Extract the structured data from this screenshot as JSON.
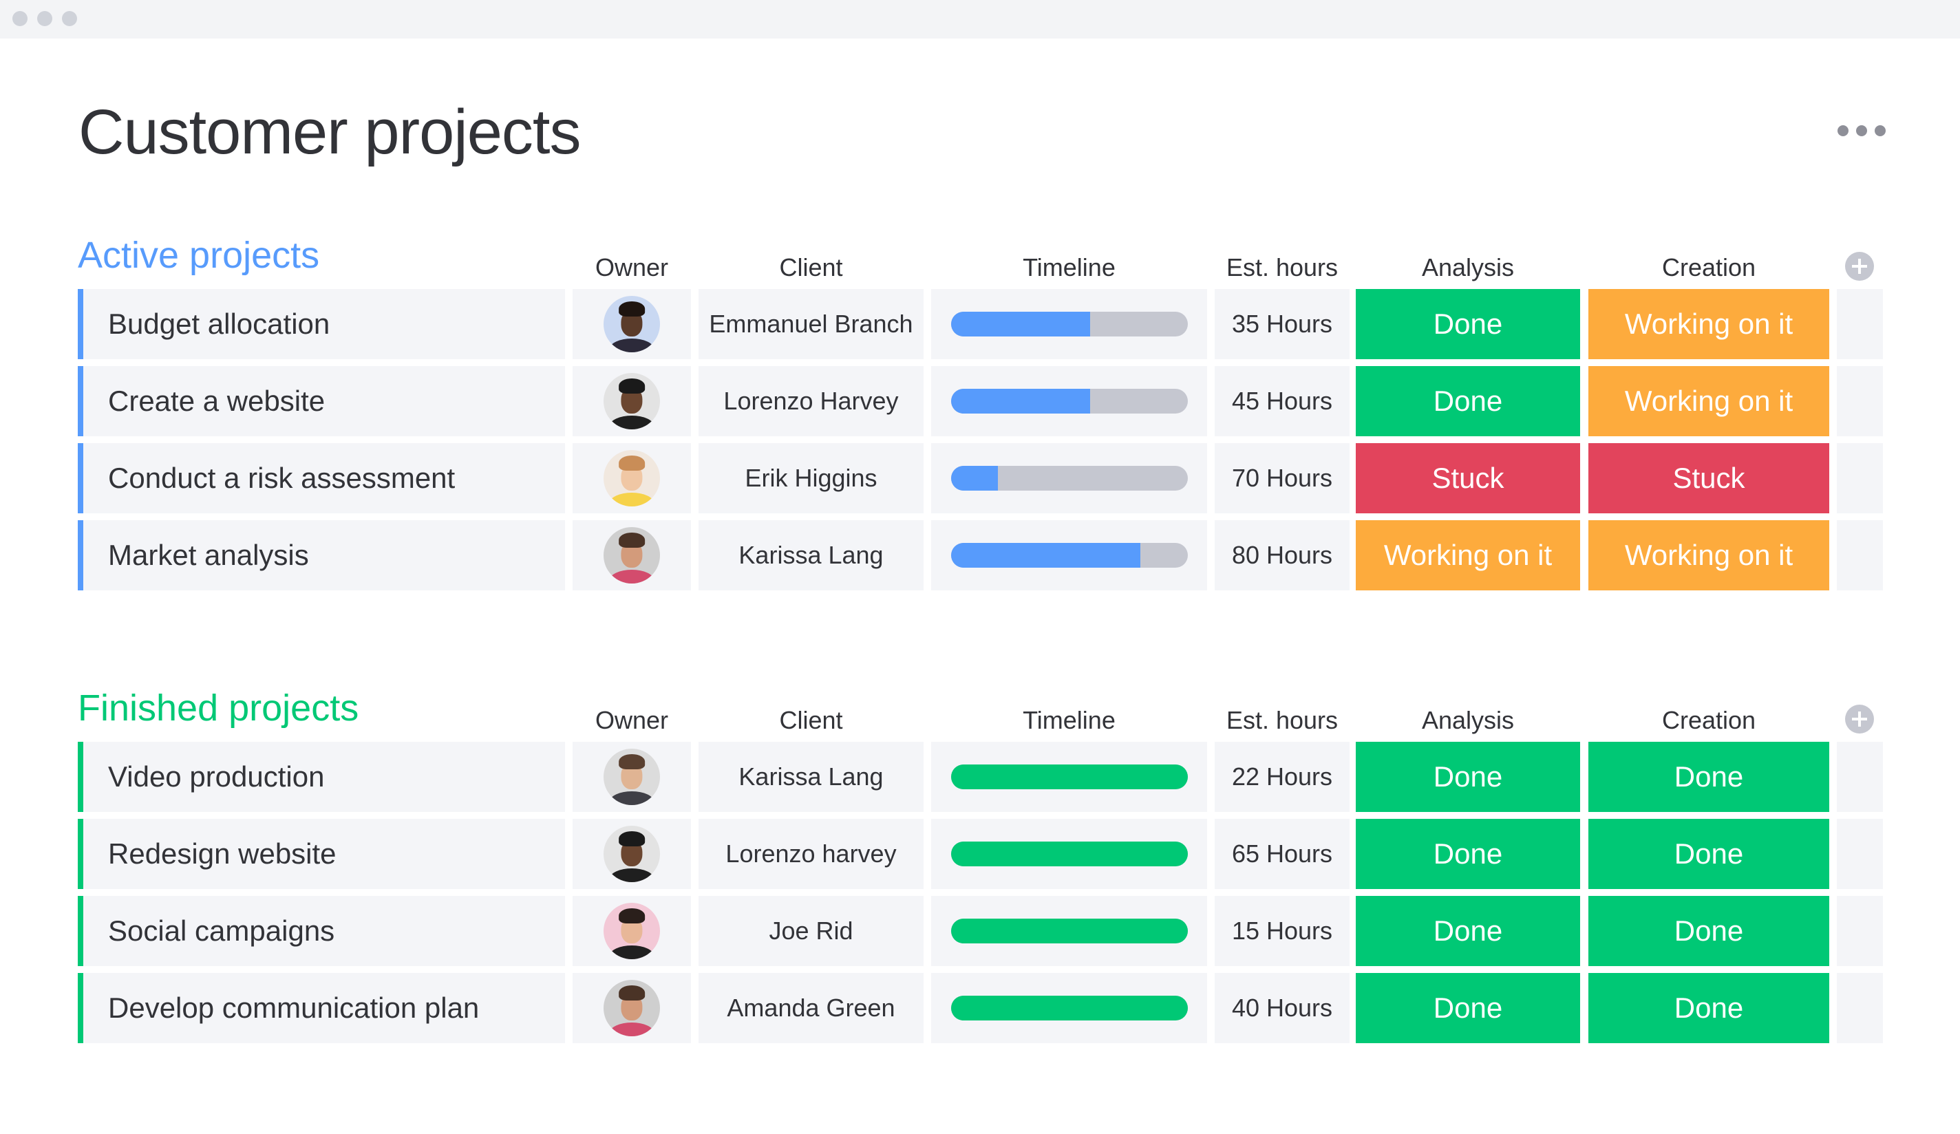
{
  "page": {
    "title": "Customer projects"
  },
  "colors": {
    "done": "#00c875",
    "working": "#fdab3d",
    "stuck": "#e2445c",
    "active_accent": "#579bfc",
    "finished_accent": "#00c875",
    "track": "#c5c7d0"
  },
  "groups": [
    {
      "title": "Active projects",
      "color": "#579bfc",
      "columns": [
        "Owner",
        "Client",
        "Timeline",
        "Est. hours",
        "Analysis",
        "Creation"
      ],
      "rows": [
        {
          "name": "Budget allocation",
          "owner": "avatar-emmanuel",
          "client": "Emmanuel Branch",
          "timeline_progress": 0.59,
          "timeline_color": "#579bfc",
          "hours": "35 Hours",
          "analysis": "Done",
          "analysis_color": "#00c875",
          "creation": "Working on it",
          "creation_color": "#fdab3d"
        },
        {
          "name": "Create a website",
          "owner": "avatar-lorenzo",
          "client": "Lorenzo Harvey",
          "timeline_progress": 0.59,
          "timeline_color": "#579bfc",
          "hours": "45 Hours",
          "analysis": "Done",
          "analysis_color": "#00c875",
          "creation": "Working on it",
          "creation_color": "#fdab3d"
        },
        {
          "name": "Conduct a risk assessment",
          "owner": "avatar-erik",
          "client": "Erik Higgins",
          "timeline_progress": 0.2,
          "timeline_color": "#579bfc",
          "hours": "70 Hours",
          "analysis": "Stuck",
          "analysis_color": "#e2445c",
          "creation": "Stuck",
          "creation_color": "#e2445c"
        },
        {
          "name": "Market analysis",
          "owner": "avatar-karissa",
          "client": "Karissa Lang",
          "timeline_progress": 0.8,
          "timeline_color": "#579bfc",
          "hours": "80 Hours",
          "analysis": "Working on it",
          "analysis_color": "#fdab3d",
          "creation": "Working on it",
          "creation_color": "#fdab3d"
        }
      ]
    },
    {
      "title": "Finished projects",
      "color": "#00c875",
      "columns": [
        "Owner",
        "Client",
        "Timeline",
        "Est. hours",
        "Analysis",
        "Creation"
      ],
      "rows": [
        {
          "name": "Video production",
          "owner": "avatar-karissa-2",
          "client": "Karissa Lang",
          "timeline_progress": 1.0,
          "timeline_color": "#00c875",
          "hours": "22 Hours",
          "analysis": "Done",
          "analysis_color": "#00c875",
          "creation": "Done",
          "creation_color": "#00c875"
        },
        {
          "name": "Redesign website",
          "owner": "avatar-lorenzo-2",
          "client": "Lorenzo harvey",
          "timeline_progress": 1.0,
          "timeline_color": "#00c875",
          "hours": "65 Hours",
          "analysis": "Done",
          "analysis_color": "#00c875",
          "creation": "Done",
          "creation_color": "#00c875"
        },
        {
          "name": "Social campaigns",
          "owner": "avatar-joe",
          "client": "Joe Rid",
          "timeline_progress": 1.0,
          "timeline_color": "#00c875",
          "hours": "15 Hours",
          "analysis": "Done",
          "analysis_color": "#00c875",
          "creation": "Done",
          "creation_color": "#00c875"
        },
        {
          "name": "Develop communication plan",
          "owner": "avatar-amanda",
          "client": "Amanda Green",
          "timeline_progress": 1.0,
          "timeline_color": "#00c875",
          "hours": "40 Hours",
          "analysis": "Done",
          "analysis_color": "#00c875",
          "creation": "Done",
          "creation_color": "#00c875"
        }
      ]
    }
  ]
}
